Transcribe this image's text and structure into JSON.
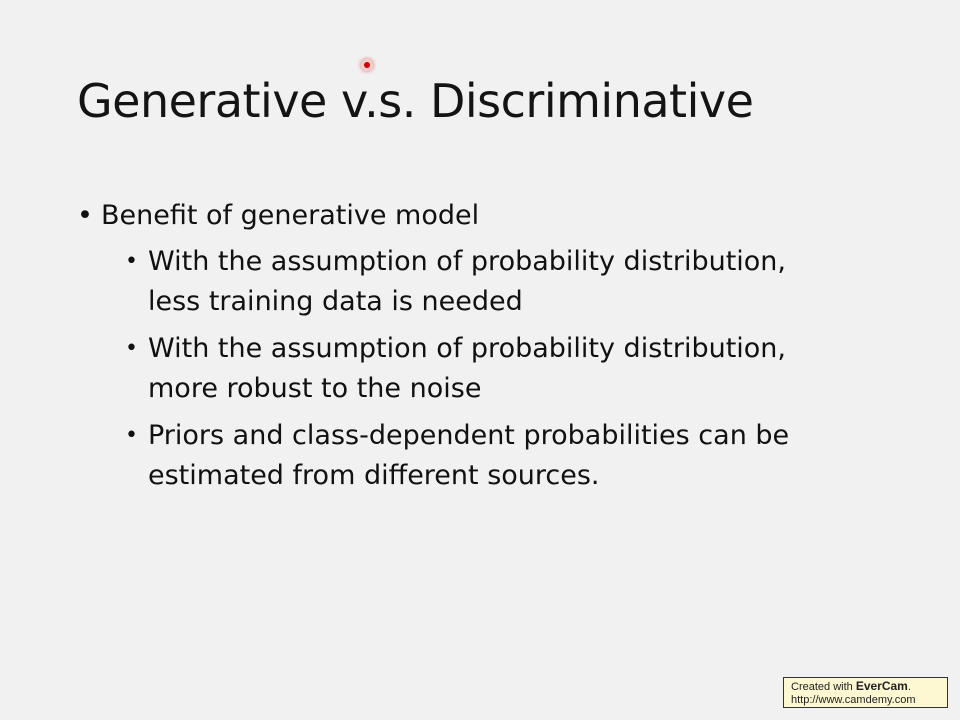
{
  "slide": {
    "title": "Generative v.s. Discriminative",
    "bullet_char": "•",
    "main_point": "Benefit of generative model",
    "sub_points": [
      {
        "lines": [
          "With the assumption of probability distribution,",
          "less training data is needed"
        ]
      },
      {
        "lines": [
          "With the assumption of probability distribution,",
          "more robust to the noise"
        ]
      },
      {
        "lines": [
          "Priors and class-dependent probabilities can be",
          "estimated from different sources."
        ]
      }
    ]
  },
  "watermark": {
    "prefix": "Created with ",
    "brand": "EverCam",
    "suffix": ".",
    "url": "http://www.camdemy.com"
  },
  "colors": {
    "background": "#f1f1f1",
    "text": "#111111",
    "pointer": "#d10000",
    "watermark_bg": "#fdf7d2"
  }
}
